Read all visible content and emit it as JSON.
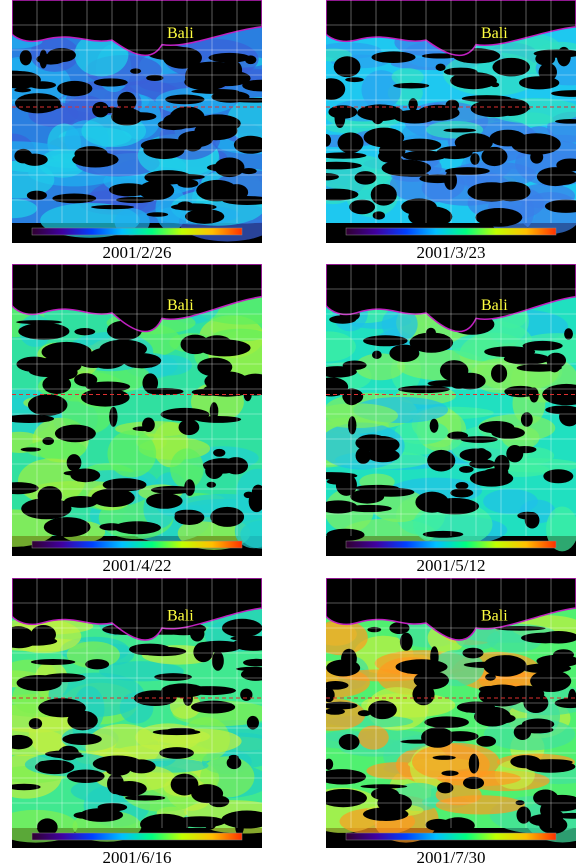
{
  "panels": [
    {
      "label": "Bali",
      "date": "2001/2/26"
    },
    {
      "label": "Bali",
      "date": "2001/3/23"
    },
    {
      "label": "Bali",
      "date": "2001/4/22"
    },
    {
      "label": "Bali",
      "date": "2001/5/12"
    },
    {
      "label": "Bali",
      "date": "2001/6/16"
    },
    {
      "label": "Bali",
      "date": "2001/7/30"
    }
  ]
}
